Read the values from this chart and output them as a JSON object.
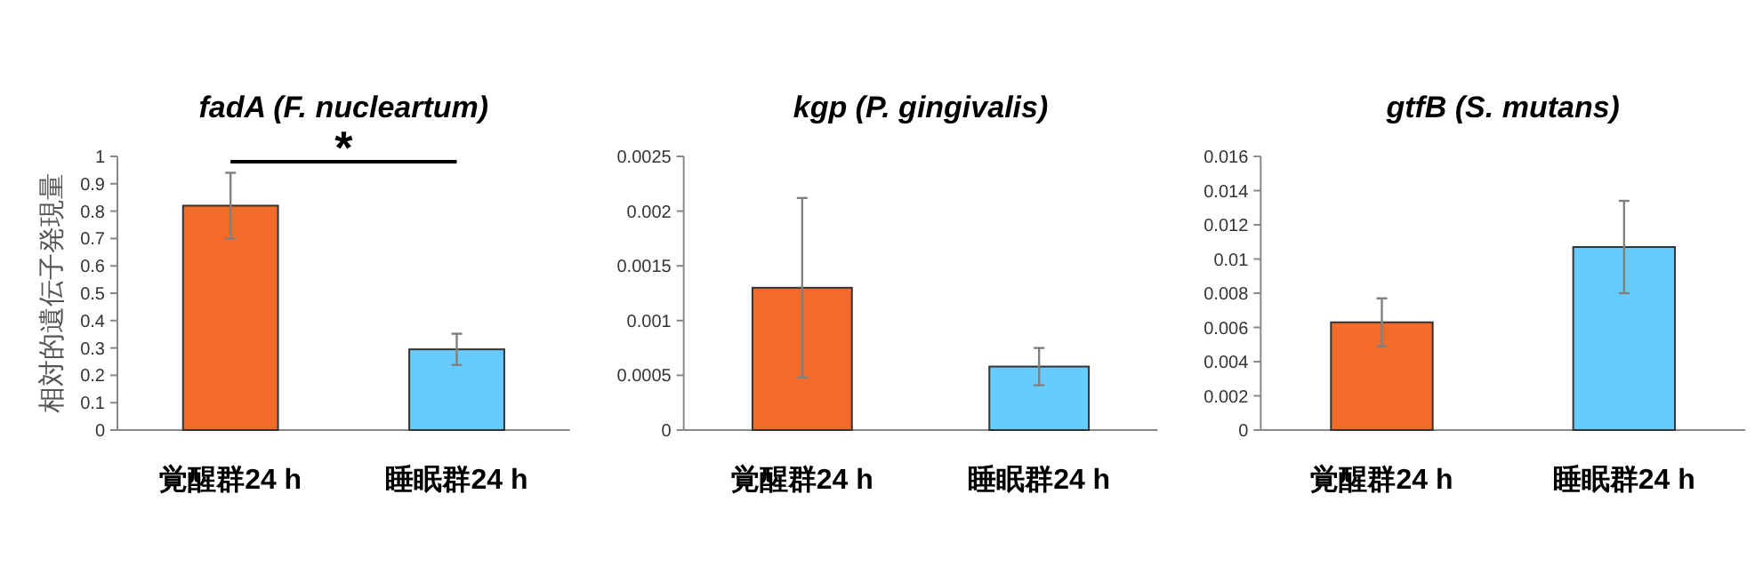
{
  "chart_data": [
    {
      "type": "bar",
      "title": "fadA (F. nucleartum)",
      "ylabel": "相対的遺伝子発現量",
      "categories": [
        "覚醒群24 h",
        "睡眠群24 h"
      ],
      "values": [
        0.82,
        0.295
      ],
      "colors": [
        "#f26b2a",
        "#66ccff"
      ],
      "errors": [
        0.12,
        0.057
      ],
      "ylim": [
        0,
        1
      ],
      "yticks": [
        0,
        0.1,
        0.2,
        0.3,
        0.4,
        0.5,
        0.6,
        0.7,
        0.8,
        0.9,
        1
      ],
      "annotations": [
        "*"
      ]
    },
    {
      "type": "bar",
      "title": "kgp (P. gingivalis)",
      "categories": [
        "覚醒群24 h",
        "睡眠群24 h"
      ],
      "values": [
        0.0013,
        0.00058
      ],
      "colors": [
        "#f26b2a",
        "#66ccff"
      ],
      "errors": [
        0.00082,
        0.00017
      ],
      "ylim": [
        0,
        0.0025
      ],
      "yticks": [
        0,
        0.0005,
        0.001,
        0.0015,
        0.002,
        0.0025
      ]
    },
    {
      "type": "bar",
      "title": "gtfB (S. mutans)",
      "categories": [
        "覚醒群24 h",
        "睡眠群24 h"
      ],
      "values": [
        0.0063,
        0.0107
      ],
      "colors": [
        "#f26b2a",
        "#66ccff"
      ],
      "errors": [
        0.0014,
        0.0027
      ],
      "ylim": [
        0,
        0.016
      ],
      "yticks": [
        0,
        0.002,
        0.004,
        0.006,
        0.008,
        0.01,
        0.012,
        0.014,
        0.016
      ]
    }
  ]
}
